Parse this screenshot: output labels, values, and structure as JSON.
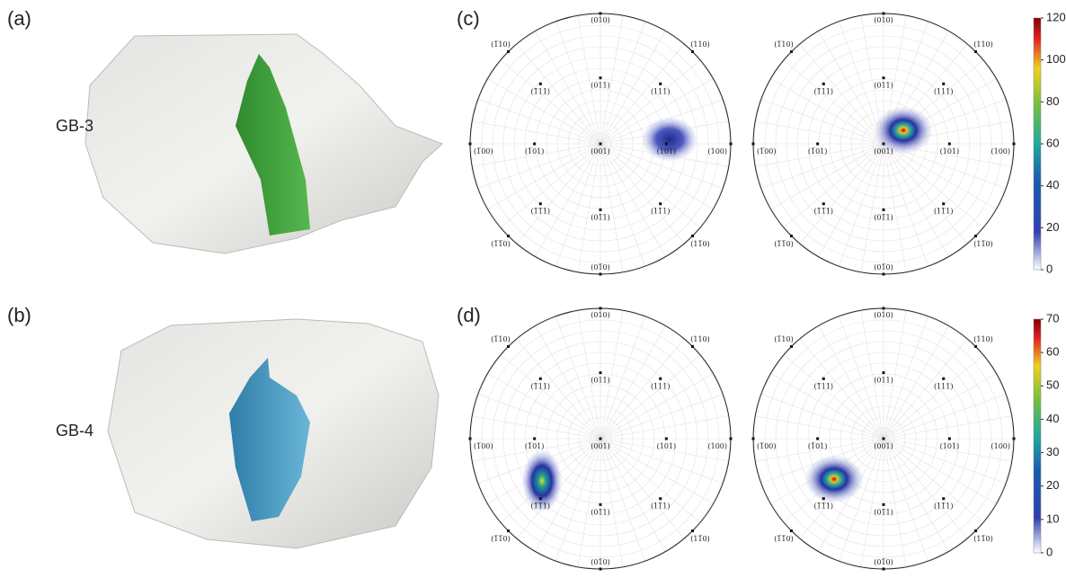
{
  "panels": [
    {
      "label": "(a)",
      "grain": "GB-3"
    },
    {
      "label": "(b)",
      "grain": "GB-4"
    }
  ],
  "pole_figures": [
    {
      "label": "(c)",
      "colorbar_ticks": [
        0,
        20,
        40,
        60,
        80,
        100,
        120
      ]
    },
    {
      "label": "(d)",
      "colorbar_ticks": [
        0,
        10,
        20,
        30,
        40,
        50,
        60,
        70
      ]
    }
  ],
  "poles": [
    "(010)",
    "(1̅00)",
    "(100)",
    "(01̅0)",
    "(1̅10)",
    "(110)",
    "(1̅1̅0)",
    "(11̅0)",
    "(1̅11)",
    "(011)",
    "(111)",
    "(1̅01)",
    "(001)",
    "(101)",
    "(1̅1̅1)",
    "(01̅1)",
    "(11̅1)"
  ]
}
